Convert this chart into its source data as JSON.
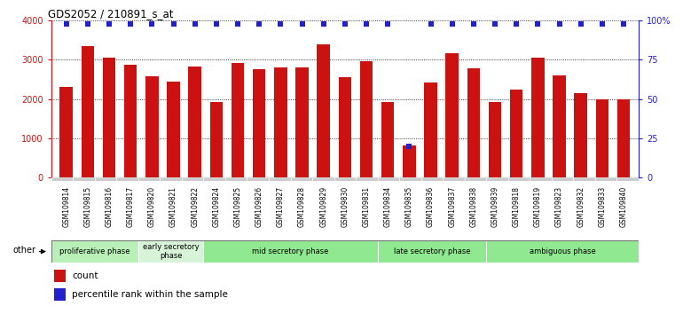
{
  "title": "GDS2052 / 210891_s_at",
  "samples": [
    "GSM109814",
    "GSM109815",
    "GSM109816",
    "GSM109817",
    "GSM109820",
    "GSM109821",
    "GSM109822",
    "GSM109824",
    "GSM109825",
    "GSM109826",
    "GSM109827",
    "GSM109828",
    "GSM109829",
    "GSM109830",
    "GSM109831",
    "GSM109834",
    "GSM109835",
    "GSM109836",
    "GSM109837",
    "GSM109838",
    "GSM109839",
    "GSM109818",
    "GSM109819",
    "GSM109823",
    "GSM109832",
    "GSM109833",
    "GSM109840"
  ],
  "counts": [
    2300,
    3340,
    3060,
    2870,
    2580,
    2450,
    2820,
    1920,
    2920,
    2750,
    2810,
    2810,
    3390,
    2560,
    2960,
    1920,
    820,
    2420,
    3160,
    2780,
    1910,
    2230,
    3060,
    2590,
    2150,
    2000,
    2000
  ],
  "percentile": [
    98,
    98,
    98,
    98,
    98,
    98,
    98,
    98,
    98,
    98,
    98,
    98,
    98,
    98,
    98,
    98,
    20,
    98,
    98,
    98,
    98,
    98,
    98,
    98,
    98,
    98,
    98
  ],
  "bar_color": "#cc1111",
  "dot_color": "#2222cc",
  "phases": [
    {
      "label": "proliferative phase",
      "start": 0,
      "end": 4,
      "color": "#b8f0b8"
    },
    {
      "label": "early secretory\nphase",
      "start": 4,
      "end": 7,
      "color": "#d8f4d8"
    },
    {
      "label": "mid secretory phase",
      "start": 7,
      "end": 15,
      "color": "#90e890"
    },
    {
      "label": "late secretory phase",
      "start": 15,
      "end": 20,
      "color": "#90e890"
    },
    {
      "label": "ambiguous phase",
      "start": 20,
      "end": 27,
      "color": "#90e890"
    }
  ],
  "ylim_left": [
    0,
    4000
  ],
  "ylim_right": [
    0,
    100
  ],
  "yticks_left": [
    0,
    1000,
    2000,
    3000,
    4000
  ],
  "yticks_right": [
    0,
    25,
    50,
    75,
    100
  ],
  "background_color": "#ffffff"
}
